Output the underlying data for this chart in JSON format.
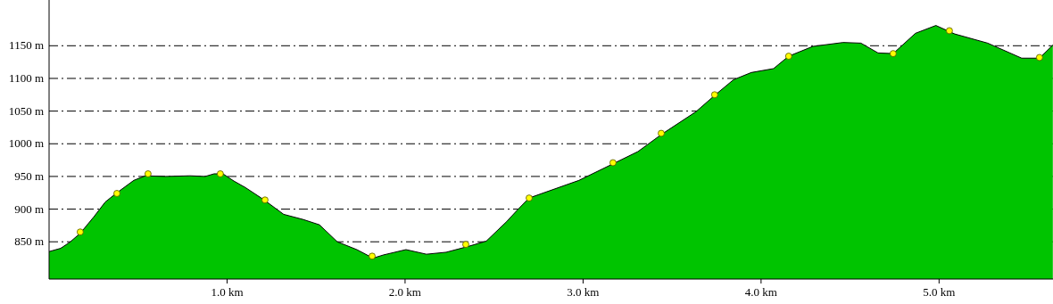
{
  "chart_data": {
    "type": "area",
    "xlim": [
      0,
      5.64
    ],
    "ylim": [
      793,
      1220
    ],
    "xticks": [
      {
        "value": 1,
        "label": "1.0 km"
      },
      {
        "value": 2,
        "label": "2.0 km"
      },
      {
        "value": 3,
        "label": "3.0 km"
      },
      {
        "value": 4,
        "label": "4.0 km"
      },
      {
        "value": 5,
        "label": "5.0 km"
      }
    ],
    "yticks": [
      {
        "value": 850,
        "label": "850 m"
      },
      {
        "value": 900,
        "label": "900 m"
      },
      {
        "value": 950,
        "label": "950 m"
      },
      {
        "value": 1000,
        "label": "1000 m"
      },
      {
        "value": 1050,
        "label": "1050 m"
      },
      {
        "value": 1100,
        "label": "1100 m"
      },
      {
        "value": 1150,
        "label": "1150 m"
      }
    ],
    "grid": "y",
    "series": [
      {
        "color": "#00c400",
        "marker": "none",
        "x": [
          0,
          0.065,
          0.115,
          0.175,
          0.251,
          0.316,
          0.376,
          0.476,
          0.541,
          0.652,
          0.792,
          0.877,
          0.927,
          0.977,
          1.038,
          1.103,
          1.203,
          1.318,
          1.429,
          1.519,
          1.619,
          1.729,
          1.82,
          1.88,
          2.005,
          2.12,
          2.231,
          2.356,
          2.456,
          2.571,
          2.632,
          2.697,
          2.977,
          3.173,
          3.308,
          3.444,
          3.634,
          3.739,
          3.845,
          3.945,
          4.07,
          4.155,
          4.291,
          4.461,
          4.561,
          4.657,
          4.742,
          4.867,
          4.982,
          5.088,
          5.273,
          5.464,
          5.564,
          5.639
        ],
        "values": [
          835,
          840,
          849,
          863,
          888,
          911,
          924,
          944,
          951,
          950,
          951,
          950,
          954,
          954,
          943,
          933,
          915,
          892,
          884,
          876,
          850,
          838,
          825,
          830,
          838,
          831,
          834,
          843,
          851,
          881,
          899,
          917,
          944,
          970,
          988,
          1015,
          1049,
          1074,
          1098,
          1109,
          1115,
          1134,
          1149,
          1155,
          1154,
          1139,
          1138,
          1169,
          1181,
          1168,
          1154,
          1131,
          1131,
          1151
        ]
      },
      {
        "type": "scatter",
        "color": "#ffff00",
        "marker": "circle",
        "x": [
          0.175,
          0.381,
          0.556,
          0.962,
          1.213,
          1.815,
          2.341,
          2.697,
          3.168,
          3.439,
          3.739,
          4.155,
          4.742,
          5.058,
          5.564
        ],
        "values": [
          865,
          924,
          954,
          954,
          914,
          828,
          846,
          917,
          971,
          1016,
          1075,
          1134,
          1138,
          1173,
          1132
        ]
      }
    ]
  }
}
